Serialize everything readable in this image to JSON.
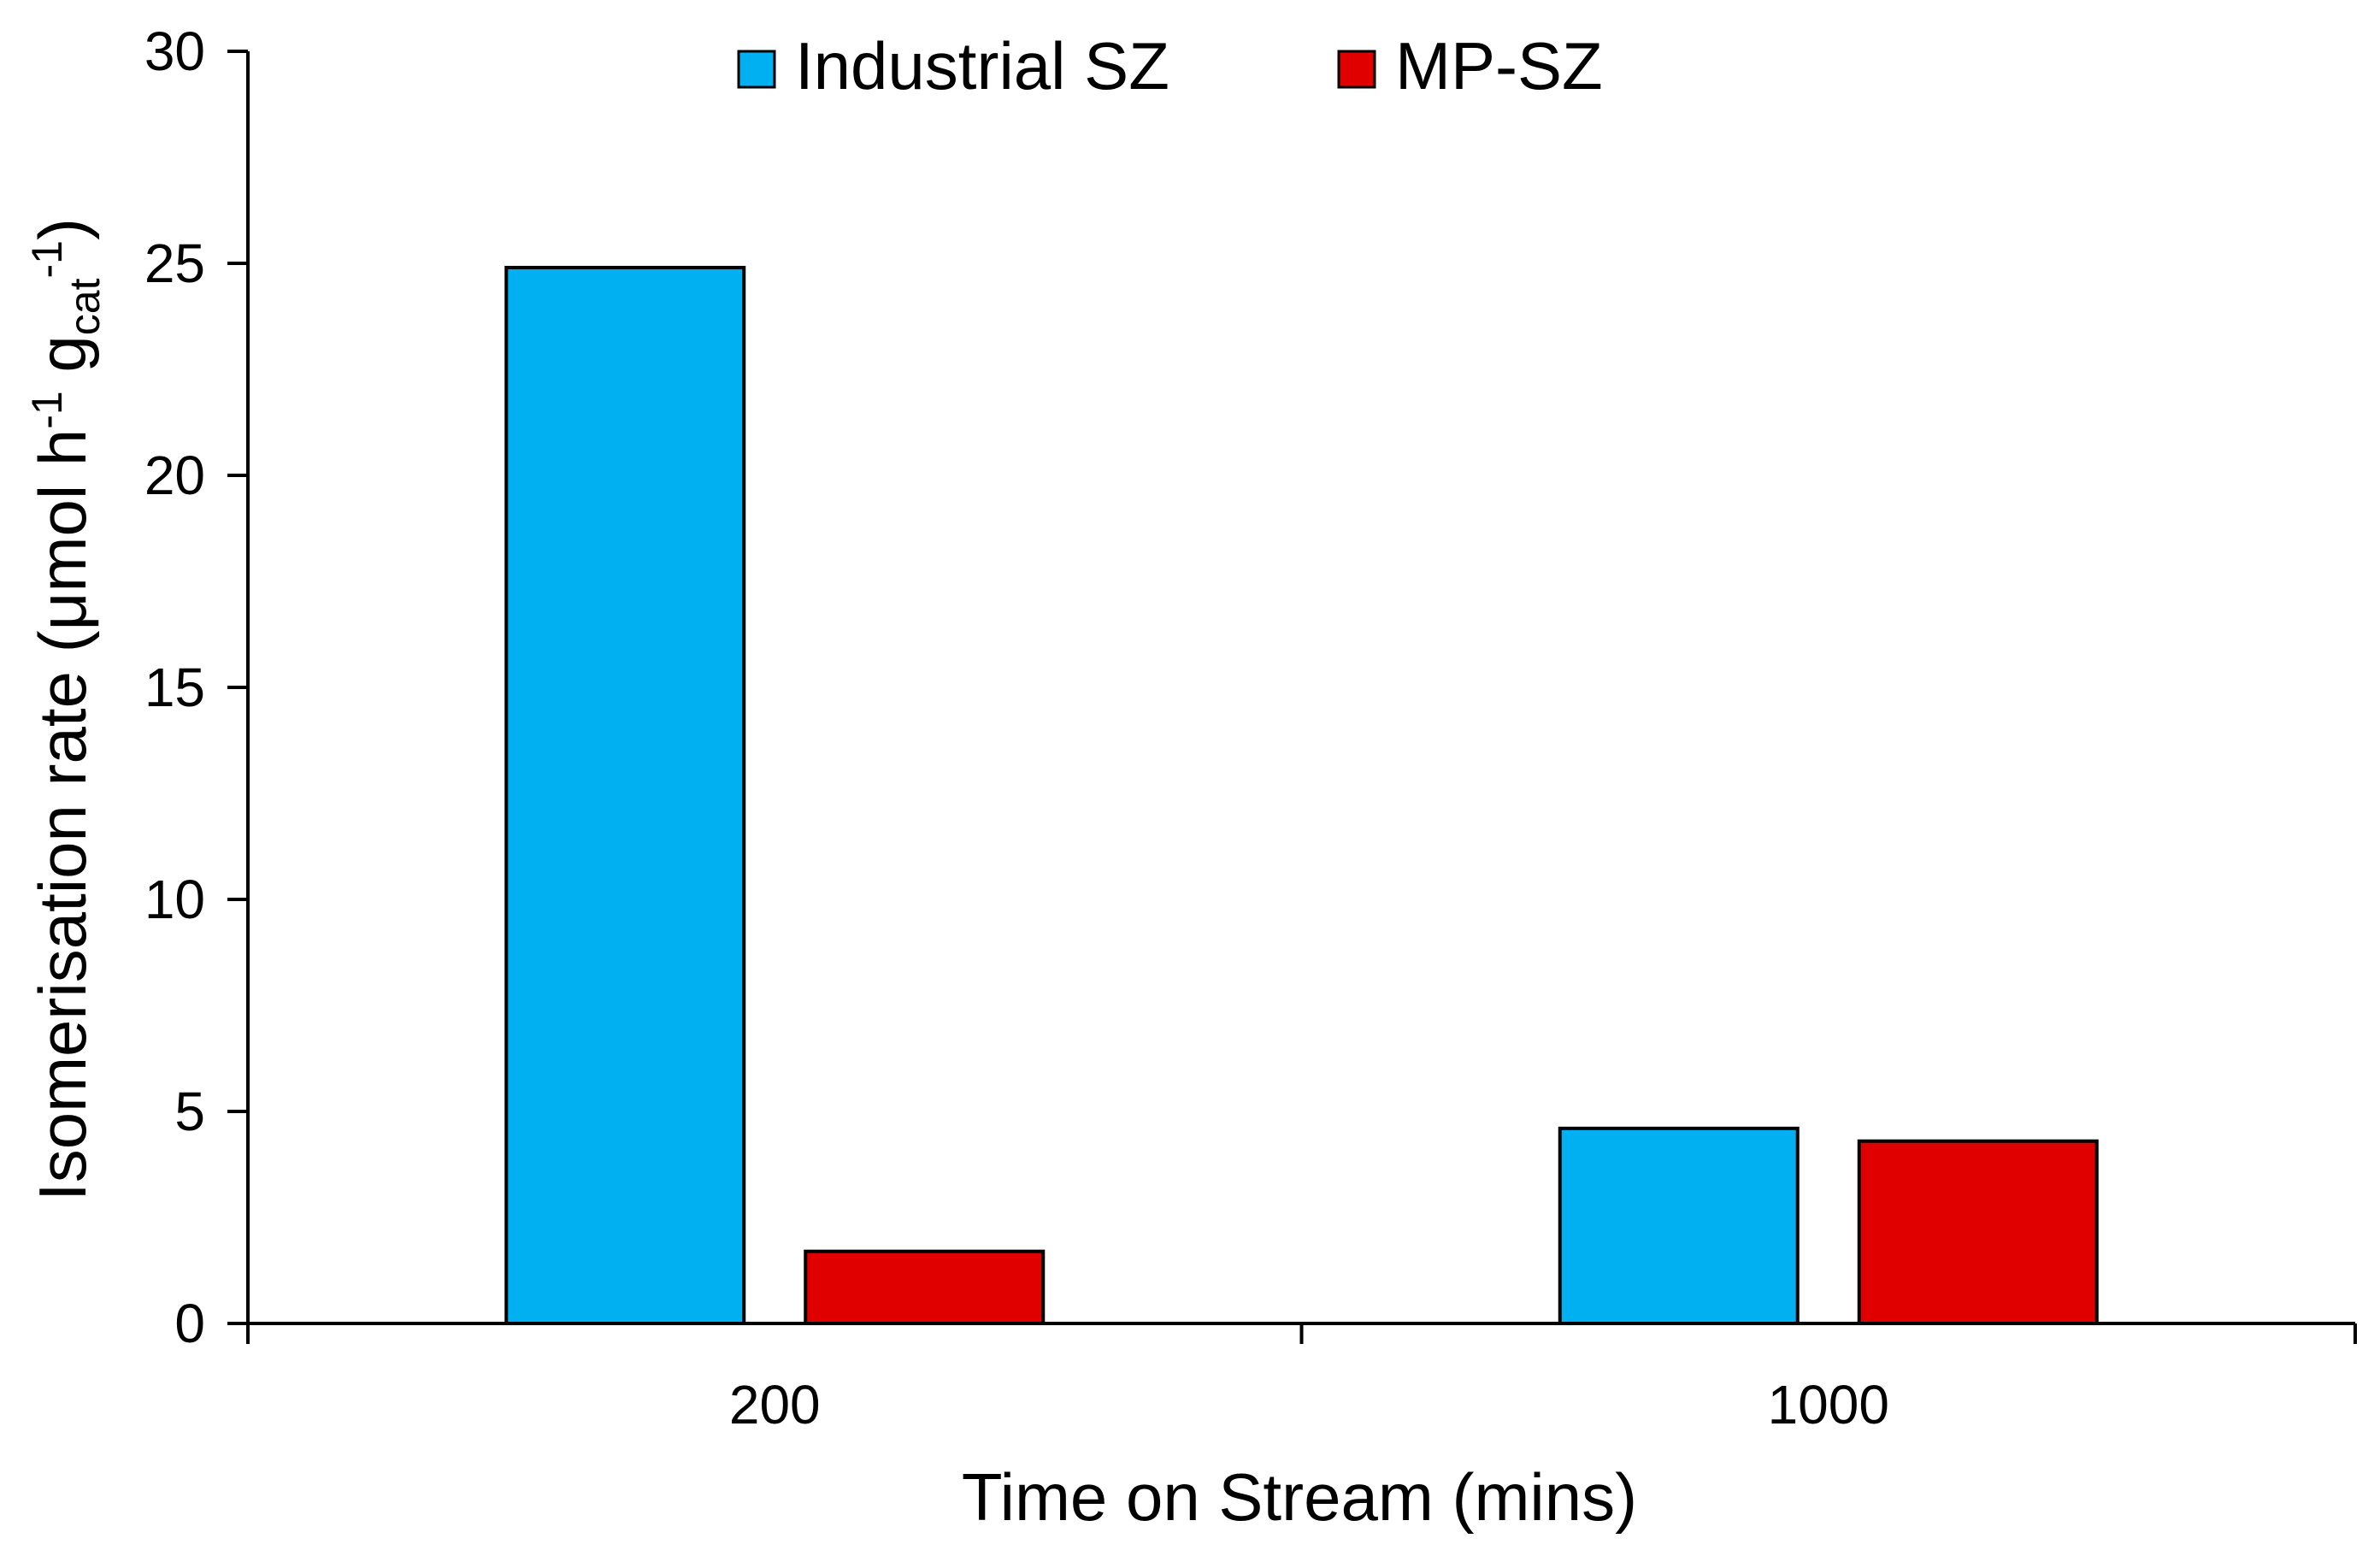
{
  "chart_data": {
    "type": "bar",
    "categories": [
      "200",
      "1000"
    ],
    "series": [
      {
        "name": "Industrial SZ",
        "values": [
          24.9,
          4.6
        ]
      },
      {
        "name": "MP-SZ",
        "values": [
          1.7,
          4.3
        ]
      }
    ],
    "xlabel": "Time on Stream (mins)",
    "ylabel": {
      "main": "Isomerisation rate (μmol h",
      "exp1": "-1",
      "mid": " g",
      "sub": "cat",
      "exp2": "-1",
      "end": ")"
    },
    "ylim": [
      0,
      30
    ],
    "yticks": [
      "0",
      "5",
      "10",
      "15",
      "20",
      "25",
      "30"
    ],
    "grid": false,
    "legend_position": "top-center",
    "colors": {
      "Industrial SZ": "#00B0F0",
      "MP-SZ": "#E00000",
      "bar_stroke": "#000000",
      "axis": "#000000"
    }
  }
}
